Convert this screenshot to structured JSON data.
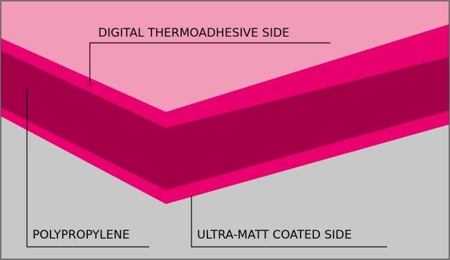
{
  "labels": {
    "top_side": "DIGITAL THERMOADHESIVE SIDE",
    "core": "POLYPROPYLENE",
    "bottom_side": "ULTRA-MATT COATED SIDE"
  },
  "colors": {
    "background_gray": "#c8c8c8",
    "top_region_pink": "#f29cba",
    "bright_magenta_layer": "#e8006e",
    "core_dark_magenta": "#a30048",
    "border": "#4a4a4a",
    "leader_line": "#000000"
  }
}
